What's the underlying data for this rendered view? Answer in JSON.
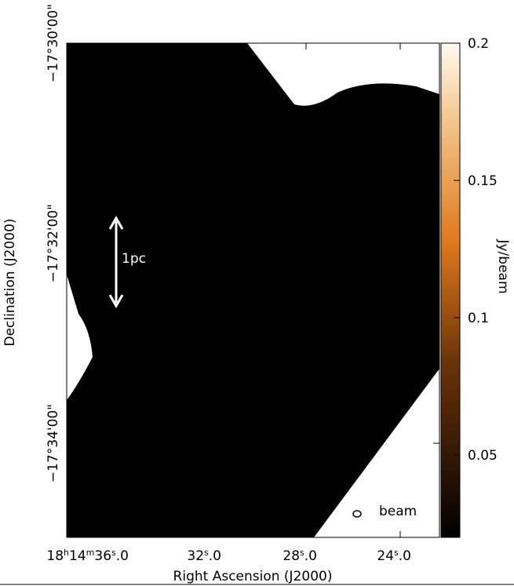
{
  "chart_data": {
    "type": "image",
    "xlabel": "Right Ascension (J2000)",
    "ylabel": "Declination (J2000)",
    "xticks": [
      "18h14m36s.0",
      "32s.0",
      "28s.0",
      "24s.0"
    ],
    "yticks": [
      "−17°30'00\"",
      "−17°32'00\"",
      "−17°34'00\""
    ],
    "colorbar": {
      "label": "Jy/beam",
      "lim": [
        0.02,
        0.2
      ],
      "ticks": [
        0.05,
        0.1,
        0.15,
        0.2
      ]
    },
    "annotations": [
      "1pc",
      "beam"
    ]
  }
}
